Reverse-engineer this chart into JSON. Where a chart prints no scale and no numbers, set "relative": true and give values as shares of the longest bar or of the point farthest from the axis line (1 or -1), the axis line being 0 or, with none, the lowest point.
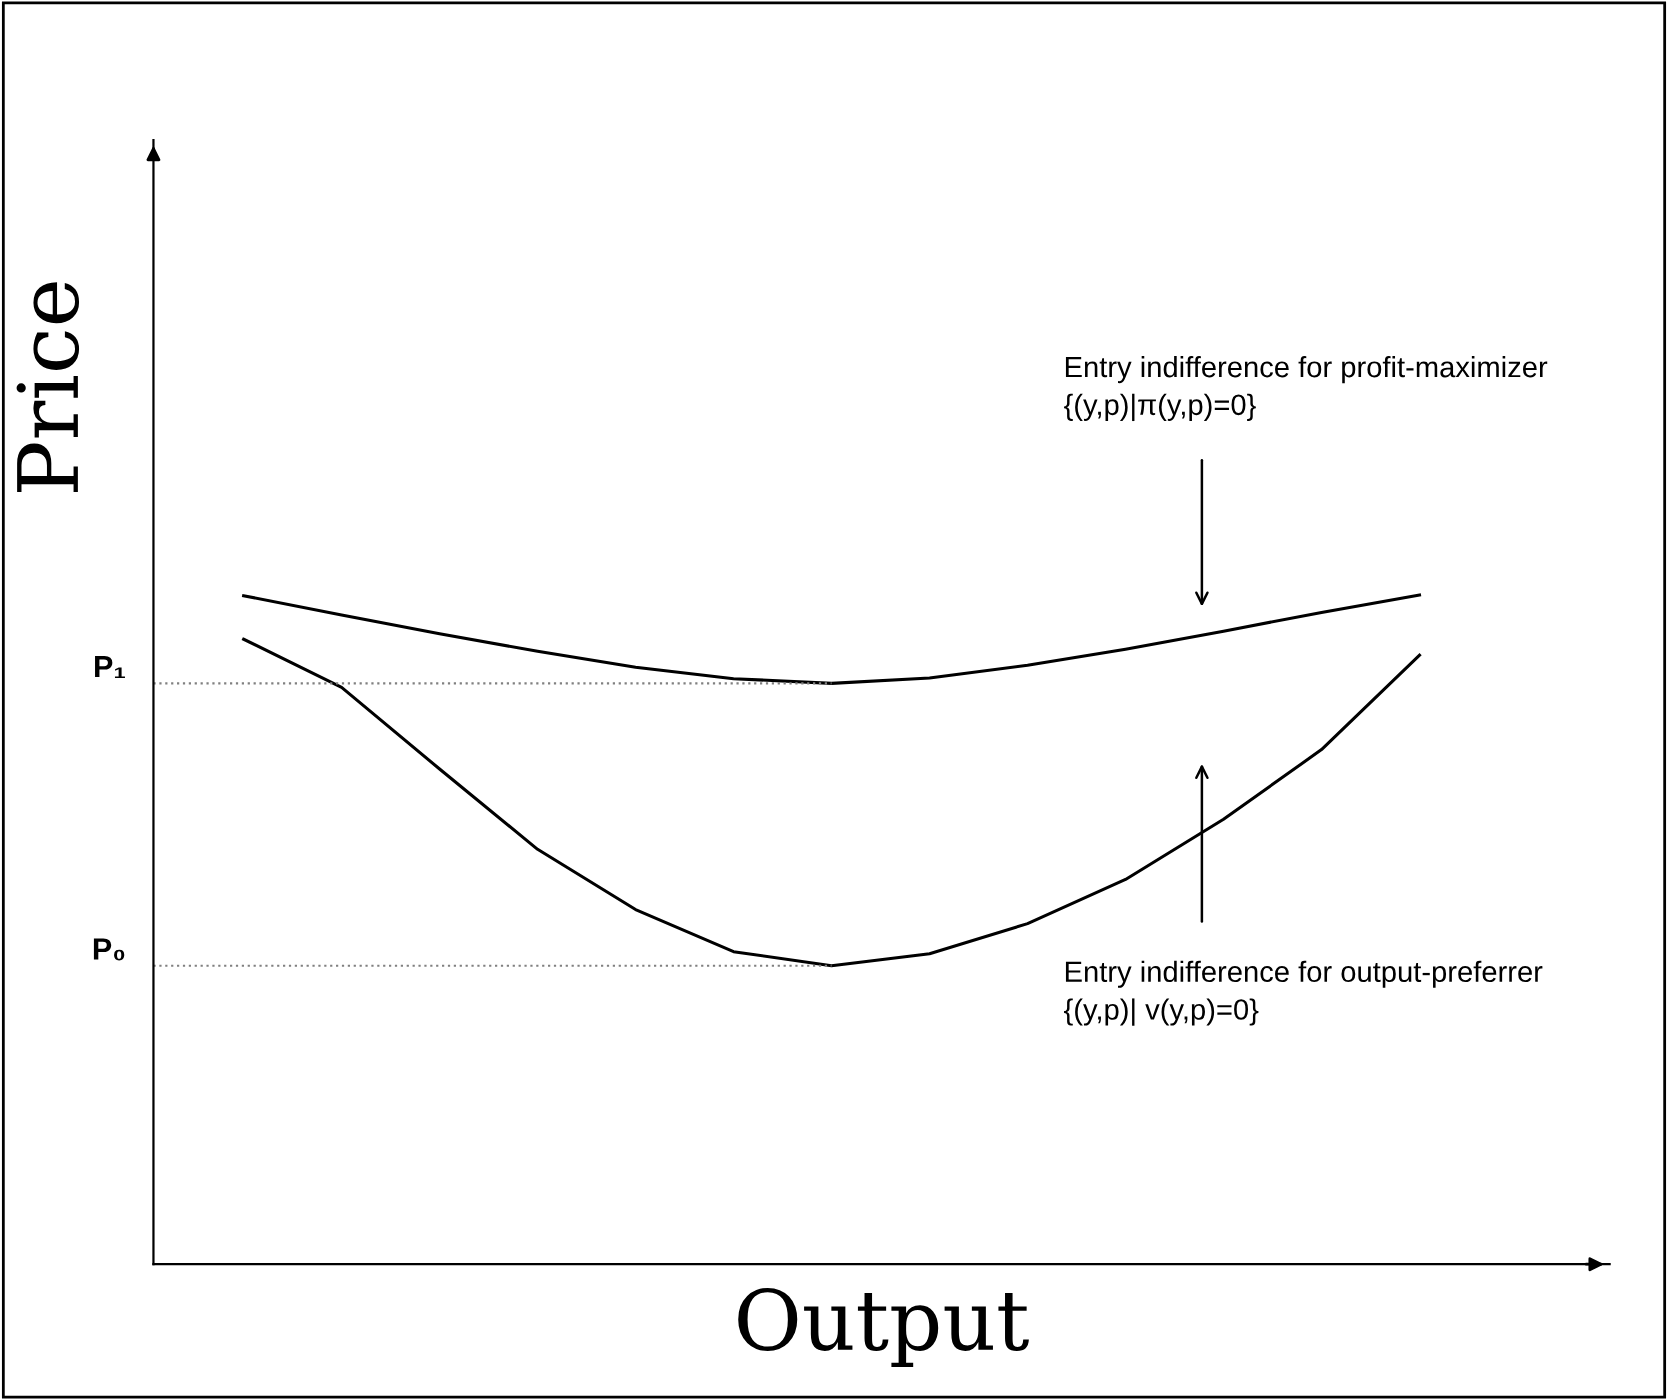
{
  "chart_data": {
    "type": "line",
    "relative": true,
    "xlabel": "Output",
    "ylabel": "Price",
    "categories": [
      null,
      null,
      null,
      null,
      null,
      null,
      null,
      null,
      null,
      null,
      null,
      null,
      null
    ],
    "series": [
      {
        "color": "#000000",
        "values": [
          0.999,
          0.97,
          0.942,
          0.916,
          0.892,
          0.875,
          0.868,
          0.876,
          0.895,
          0.919,
          0.946,
          0.974,
          1.0
        ]
      },
      {
        "color": "#000000",
        "values": [
          0.934,
          0.862,
          0.74,
          0.62,
          0.53,
          0.467,
          0.446,
          0.464,
          0.509,
          0.575,
          0.665,
          0.769,
          0.91
        ]
      }
    ],
    "ref_lines": [
      {
        "axis": "y",
        "value": 0.868,
        "label": "P₁",
        "line_style": "dotted",
        "color": "#808080"
      },
      {
        "axis": "y",
        "value": 0.446,
        "label": "P₀",
        "line_style": "dotted",
        "color": "#808080"
      }
    ],
    "annotations": [
      "Entry indifference for profit-maximizer\n{(y,p)|π(y,p)=0}",
      "Entry indifference for output-preferrer\n{(y,p)| v(y,p)=0}"
    ],
    "marker": "none",
    "line_style": "solid"
  }
}
